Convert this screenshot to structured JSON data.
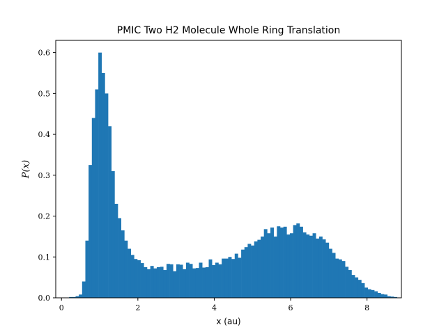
{
  "chart_data": {
    "type": "bar",
    "title": "PMIC Two H2 Molecule Whole Ring Translation",
    "xlabel": "x (au)",
    "ylabel": "P(x)",
    "xlim": [
      -0.15,
      8.9
    ],
    "ylim": [
      0.0,
      0.63
    ],
    "xticks": [
      0,
      2,
      4,
      6,
      8
    ],
    "yticks": [
      0.0,
      0.1,
      0.2,
      0.3,
      0.4,
      0.5,
      0.6
    ],
    "ytick_labels": [
      "0.0",
      "0.1",
      "0.2",
      "0.3",
      "0.4",
      "0.5",
      "0.6"
    ],
    "bin_start": 0.2,
    "bin_width": 0.085,
    "values": [
      0.002,
      0.002,
      0.004,
      0.008,
      0.04,
      0.14,
      0.325,
      0.44,
      0.51,
      0.6,
      0.55,
      0.5,
      0.42,
      0.31,
      0.23,
      0.195,
      0.165,
      0.14,
      0.12,
      0.105,
      0.095,
      0.092,
      0.085,
      0.075,
      0.07,
      0.078,
      0.072,
      0.075,
      0.076,
      0.068,
      0.083,
      0.082,
      0.065,
      0.082,
      0.081,
      0.07,
      0.086,
      0.083,
      0.072,
      0.073,
      0.086,
      0.074,
      0.075,
      0.094,
      0.08,
      0.086,
      0.082,
      0.096,
      0.096,
      0.1,
      0.095,
      0.108,
      0.098,
      0.118,
      0.124,
      0.132,
      0.128,
      0.138,
      0.142,
      0.15,
      0.168,
      0.158,
      0.172,
      0.15,
      0.175,
      0.172,
      0.174,
      0.155,
      0.158,
      0.178,
      0.182,
      0.174,
      0.16,
      0.155,
      0.152,
      0.158,
      0.145,
      0.15,
      0.143,
      0.135,
      0.12,
      0.11,
      0.096,
      0.094,
      0.09,
      0.076,
      0.068,
      0.056,
      0.05,
      0.044,
      0.036,
      0.025,
      0.021,
      0.019,
      0.016,
      0.012,
      0.009,
      0.008,
      0.004,
      0.003,
      0.002
    ]
  }
}
